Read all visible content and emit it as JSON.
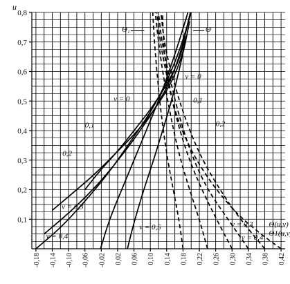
{
  "chart_data": {
    "type": "line",
    "ylabel": "u",
    "xlim": [
      -0.19,
      0.43
    ],
    "ylim": [
      0,
      0.8
    ],
    "x_ticks": [
      "-0,18",
      "-0,14",
      "-0,10",
      "-0,06",
      "-0,02",
      "0,02",
      "0,06",
      "0,10",
      "0,14",
      "0,18",
      "0,22",
      "0,26",
      "0,30",
      "0,34",
      "0,38",
      "0,42"
    ],
    "x_tick_values": [
      -0.18,
      -0.14,
      -0.1,
      -0.06,
      -0.02,
      0.02,
      0.06,
      0.1,
      0.14,
      0.18,
      0.22,
      0.26,
      0.3,
      0.34,
      0.38,
      0.42
    ],
    "y_ticks": [
      "0,1",
      "0,2",
      "0,3",
      "0,4",
      "0,5",
      "0,6",
      "0,7",
      "0,8"
    ],
    "y_tick_values": [
      0.1,
      0.2,
      0.3,
      0.4,
      0.5,
      0.6,
      0.7,
      0.8
    ],
    "grid": true,
    "series": [
      {
        "name": "Θ(u,v)",
        "group": "Theta",
        "v": 0,
        "style": "solid",
        "x": [
          0.044,
          0.062,
          0.084,
          0.108,
          0.13,
          0.152,
          0.17,
          0.186
        ],
        "y": [
          0.0,
          0.1,
          0.2,
          0.3,
          0.4,
          0.5,
          0.6,
          0.7
        ]
      },
      {
        "name": "Θ(u,v)",
        "group": "Theta",
        "v": 0.1,
        "style": "solid",
        "x": [
          -0.06,
          -0.02,
          0.02,
          0.06,
          0.1,
          0.138,
          0.168,
          0.188
        ],
        "y": [
          0.2,
          0.27,
          0.33,
          0.4,
          0.47,
          0.55,
          0.63,
          0.72
        ]
      },
      {
        "name": "Θ(u,v)",
        "group": "Theta",
        "v": 0.2,
        "style": "solid",
        "x": [
          -0.14,
          -0.08,
          -0.03,
          0.02,
          0.07,
          0.115,
          0.155,
          0.182,
          0.196
        ],
        "y": [
          0.13,
          0.2,
          0.26,
          0.33,
          0.4,
          0.48,
          0.57,
          0.67,
          0.77
        ]
      },
      {
        "name": "Θ(u,v)",
        "group": "Theta",
        "v": 0.3,
        "style": "solid",
        "x": [
          -0.16,
          -0.1,
          -0.04,
          0.01,
          0.06,
          0.11,
          0.15,
          0.178,
          0.198
        ],
        "y": [
          0.05,
          0.12,
          0.2,
          0.28,
          0.37,
          0.47,
          0.57,
          0.68,
          0.8
        ]
      },
      {
        "name": "Θ(u,v)",
        "group": "Theta",
        "v": 0.4,
        "style": "solid",
        "x": [
          -0.18,
          -0.12,
          -0.06,
          0.0,
          0.05,
          0.1,
          0.142,
          0.174,
          0.2
        ],
        "y": [
          0.0,
          0.07,
          0.16,
          0.26,
          0.36,
          0.46,
          0.57,
          0.68,
          0.8
        ]
      },
      {
        "name": "Θ(u,v)",
        "group": "Theta",
        "v": 0.5,
        "style": "solid",
        "x": [
          -0.022,
          0.0,
          0.03,
          0.06,
          0.09,
          0.12,
          0.146,
          0.17,
          0.192
        ],
        "y": [
          0.0,
          0.1,
          0.2,
          0.3,
          0.4,
          0.5,
          0.6,
          0.7,
          0.8
        ]
      },
      {
        "name": "Θ1(u,v)",
        "group": "Theta1",
        "v": 0,
        "style": "dashed",
        "x": [
          0.42,
          0.37,
          0.31,
          0.25,
          0.2,
          0.16,
          0.14,
          0.132,
          0.13
        ],
        "y": [
          0.0,
          0.05,
          0.12,
          0.22,
          0.33,
          0.46,
          0.6,
          0.7,
          0.8
        ]
      },
      {
        "name": "Θ1(u,v)",
        "group": "Theta1",
        "v": 0.1,
        "style": "dashed",
        "x": [
          0.38,
          0.32,
          0.27,
          0.22,
          0.18,
          0.15,
          0.134,
          0.126
        ],
        "y": [
          0.0,
          0.1,
          0.2,
          0.32,
          0.46,
          0.6,
          0.7,
          0.8
        ]
      },
      {
        "name": "Θ1(u,v)",
        "group": "Theta1",
        "v": 0.2,
        "style": "dashed",
        "x": [
          0.34,
          0.29,
          0.24,
          0.2,
          0.168,
          0.144,
          0.128,
          0.12
        ],
        "y": [
          0.0,
          0.1,
          0.2,
          0.32,
          0.46,
          0.6,
          0.7,
          0.8
        ]
      },
      {
        "name": "Θ1(u,v)",
        "group": "Theta1",
        "v": 0.3,
        "style": "dashed",
        "x": [
          0.3,
          0.262,
          0.226,
          0.19,
          0.16,
          0.138,
          0.124,
          0.116
        ],
        "y": [
          0.0,
          0.1,
          0.2,
          0.32,
          0.46,
          0.6,
          0.7,
          0.8
        ]
      },
      {
        "name": "Θ1(u,v)",
        "group": "Theta1",
        "v": 0.4,
        "style": "dashed",
        "x": [
          0.24,
          0.22,
          0.196,
          0.17,
          0.148,
          0.13,
          0.12,
          0.112
        ],
        "y": [
          0.0,
          0.1,
          0.2,
          0.32,
          0.46,
          0.6,
          0.7,
          0.8
        ]
      },
      {
        "name": "Θ1(u,v)",
        "group": "Theta1",
        "v": 0.5,
        "style": "dashed",
        "x": [
          0.18,
          0.17,
          0.156,
          0.14,
          0.126,
          0.116,
          0.11,
          0.106
        ],
        "y": [
          0.0,
          0.1,
          0.2,
          0.32,
          0.46,
          0.6,
          0.7,
          0.8
        ]
      }
    ],
    "annotations": [
      {
        "text": "Θ₁",
        "x": 0.03,
        "y": 0.735
      },
      {
        "text": "Θ",
        "x": 0.235,
        "y": 0.735
      },
      {
        "text": "v = 0",
        "x": 0.185,
        "y": 0.575
      },
      {
        "text": "v = 0",
        "x": 0.01,
        "y": 0.5
      },
      {
        "text": "0,1",
        "x": 0.205,
        "y": 0.495
      },
      {
        "text": "0,1",
        "x": -0.06,
        "y": 0.41
      },
      {
        "text": "0,2",
        "x": 0.26,
        "y": 0.415
      },
      {
        "text": "0,2",
        "x": -0.115,
        "y": 0.315
      },
      {
        "text": "v = 0,3",
        "x": -0.117,
        "y": 0.135
      },
      {
        "text": "v = 0,5",
        "x": 0.073,
        "y": 0.065
      },
      {
        "text": "v = 0,4",
        "x": -0.155,
        "y": 0.035
      },
      {
        "text": "v = 0,3",
        "x": 0.298,
        "y": 0.075
      },
      {
        "text": "v = 0,4",
        "x": 0.323,
        "y": 0.03
      },
      {
        "text": "Θ(u,v)",
        "x": 0.39,
        "y": 0.075
      },
      {
        "text": "Θ1(u,v)",
        "x": 0.39,
        "y": 0.045
      }
    ]
  }
}
